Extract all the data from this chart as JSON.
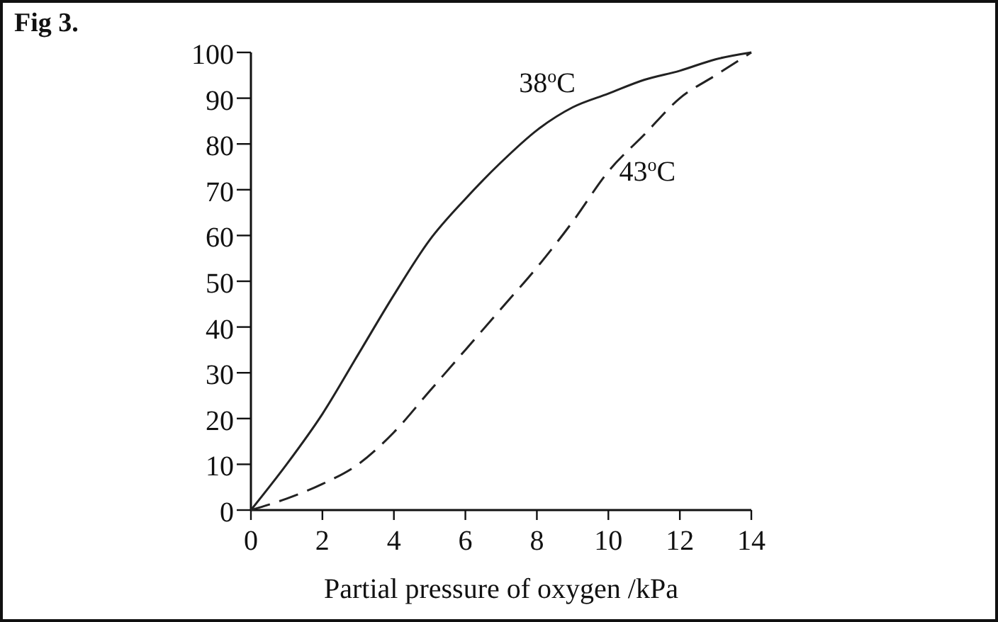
{
  "chart_data": {
    "type": "line",
    "title": "Fig 3.",
    "xlabel": "Partial pressure of oxygen /kPa",
    "xlim": [
      0,
      14
    ],
    "xticks": [
      0,
      2,
      4,
      6,
      8,
      10,
      12,
      14
    ],
    "ylim": [
      0,
      100
    ],
    "yticks": [
      0,
      10,
      20,
      30,
      40,
      50,
      60,
      70,
      80,
      90,
      100
    ],
    "x": [
      0,
      1,
      2,
      3,
      4,
      5,
      6,
      7,
      8,
      9,
      10,
      11,
      12,
      13,
      14
    ],
    "series": [
      {
        "name": "38$^{o}$C",
        "color": "#222222",
        "line_style": "solid",
        "values": [
          0,
          10,
          21,
          34,
          47,
          59,
          68,
          76,
          83,
          88,
          91,
          94,
          96,
          98.5,
          100
        ]
      },
      {
        "name": "43$^{o}$C",
        "color": "#222222",
        "line_style": "dashed",
        "values": [
          0,
          2.5,
          5.7,
          10,
          17,
          26,
          35,
          44,
          53,
          63,
          74,
          82,
          90,
          95,
          100
        ]
      }
    ],
    "grid": false,
    "legend": false,
    "marker": "none"
  }
}
